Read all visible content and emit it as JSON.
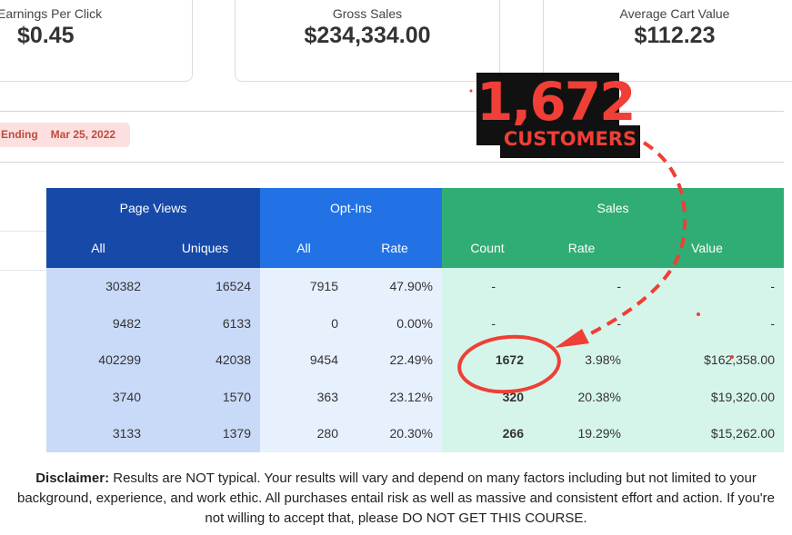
{
  "stats": {
    "epc": {
      "label": "Earnings Per Click",
      "value": "$0.45"
    },
    "gross": {
      "label": "Gross Sales",
      "value": "$234,334.00"
    },
    "cart": {
      "label": "Average Cart Value",
      "value": "$112.23"
    }
  },
  "badge": {
    "label": "Ending",
    "date": "Mar 25, 2022"
  },
  "table": {
    "groups": {
      "page_views": "Page Views",
      "opt_ins": "Opt-Ins",
      "sales": "Sales"
    },
    "subheaders": {
      "pv_all": "All",
      "pv_uniques": "Uniques",
      "op_all": "All",
      "op_rate": "Rate",
      "sa_count": "Count",
      "sa_rate": "Rate",
      "sa_value": "Value"
    },
    "rows": [
      [
        "30382",
        "16524",
        "7915",
        "47.90%",
        "-",
        "-",
        "-"
      ],
      [
        "9482",
        "6133",
        "0",
        "0.00%",
        "-",
        "-",
        "-"
      ],
      [
        "402299",
        "42038",
        "9454",
        "22.49%",
        "1672",
        "3.98%",
        "$162,358.00"
      ],
      [
        "3740",
        "1570",
        "363",
        "23.12%",
        "320",
        "20.38%",
        "$19,320.00"
      ],
      [
        "3133",
        "1379",
        "280",
        "20.30%",
        "266",
        "19.29%",
        "$15,262.00"
      ]
    ]
  },
  "callout": {
    "number": "1,672",
    "label": "CUSTOMERS",
    "color": "#ef3f36"
  },
  "disclaimer": {
    "lead": "Disclaimer:",
    "text": " Results are NOT typical. Your results will vary and depend on many factors including but not limited to your background, experience, and work ethic. All purchases entail risk as well as massive and consistent effort and action. If you're not willing to accept that, please DO NOT GET THIS COURSE."
  }
}
